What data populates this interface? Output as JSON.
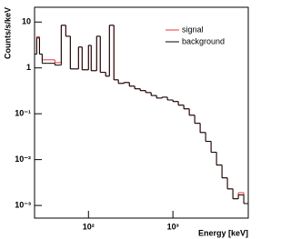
{
  "chart_data": {
    "type": "histogram",
    "x_label": "Energy [keV]",
    "y_label": "Counts/s/keV",
    "xscale": "log",
    "yscale": "log",
    "xlim": [
      23,
      7800
    ],
    "ylim": [
      0.00053,
      21
    ],
    "xticks": [
      {
        "value": 100,
        "label": "10²"
      },
      {
        "value": 1000,
        "label": "10³"
      }
    ],
    "yticks": [
      {
        "value": 0.001,
        "label": "10⁻³"
      },
      {
        "value": 0.01,
        "label": "10⁻²"
      },
      {
        "value": 0.1,
        "label": "10⁻¹"
      },
      1,
      10
    ],
    "legend": "upper right",
    "bins": [
      23.2,
      24.4,
      26.3,
      28.3,
      32.8,
      40.0,
      47.6,
      53.9,
      61.0,
      76.2,
      84.1,
      100,
      107.7,
      125,
      138,
      160,
      177,
      200,
      226,
      263,
      305,
      353,
      410,
      476,
      552,
      640,
      743,
      861,
      1000,
      1160,
      1346,
      1562,
      1812,
      2102,
      2439,
      2830,
      3283,
      3810,
      4420,
      5128,
      5950,
      6902,
      7800
    ],
    "series": [
      {
        "name": "signal",
        "color": "#e8343a",
        "values": [
          2.0,
          4.8,
          2.0,
          1.5,
          1.5,
          1.3,
          8.5,
          4.9,
          0.95,
          2.85,
          0.91,
          3.1,
          0.87,
          4.9,
          0.8,
          0.66,
          8.5,
          0.55,
          0.46,
          0.48,
          0.4,
          0.35,
          0.32,
          0.29,
          0.25,
          0.22,
          0.23,
          0.2,
          0.185,
          0.154,
          0.128,
          0.093,
          0.062,
          0.039,
          0.025,
          0.0145,
          0.0076,
          0.004,
          0.0023,
          0.0014,
          0.0019,
          0.0011
        ]
      },
      {
        "name": "background",
        "color": "#000000",
        "values": [
          2.0,
          4.5,
          2.0,
          1.26,
          1.26,
          1.15,
          8.5,
          4.9,
          0.95,
          2.85,
          0.91,
          3.1,
          0.87,
          4.9,
          0.8,
          0.66,
          8.5,
          0.55,
          0.46,
          0.48,
          0.4,
          0.35,
          0.32,
          0.29,
          0.25,
          0.22,
          0.23,
          0.2,
          0.185,
          0.154,
          0.128,
          0.093,
          0.062,
          0.039,
          0.025,
          0.0145,
          0.0076,
          0.004,
          0.0023,
          0.0014,
          0.0017,
          0.0011
        ]
      }
    ]
  }
}
